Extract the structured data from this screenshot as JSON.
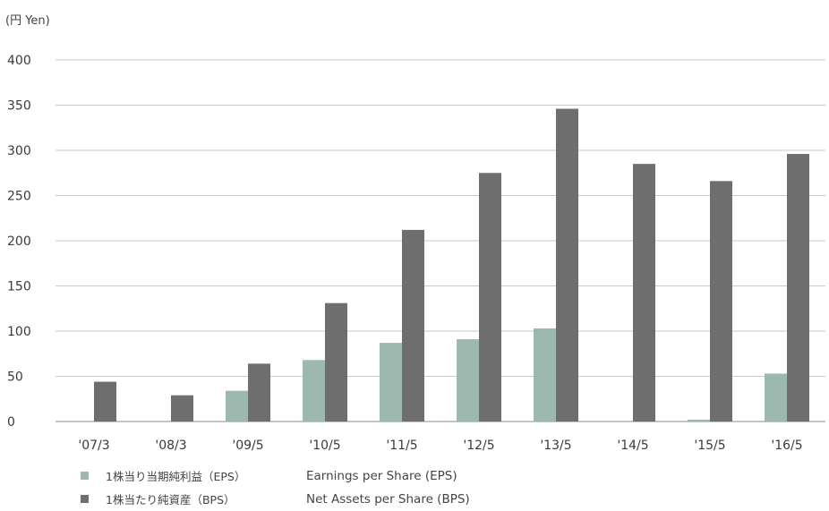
{
  "unit_label": "(円 Yen)",
  "legend": [
    {
      "jp": "1株当り当期純利益（EPS）",
      "en": "Earnings per Share (EPS)",
      "color": "#9db8ae"
    },
    {
      "jp": "1株当たり純資産（BPS）",
      "en": "Net Assets per Share (BPS)",
      "color": "#6e6e6e"
    }
  ],
  "chart_data": {
    "type": "bar",
    "categories": [
      "'07/3",
      "'08/3",
      "'09/5",
      "'10/5",
      "'11/5",
      "'12/5",
      "'13/5",
      "'14/5",
      "'15/5",
      "'16/5"
    ],
    "series": [
      {
        "name": "1株当り当期純利益（EPS） Earnings per Share (EPS)",
        "color": "#9db8ae",
        "values": [
          0,
          0,
          34,
          68,
          87,
          91,
          103,
          0,
          2,
          53
        ]
      },
      {
        "name": "1株当たり純資産（BPS） Net Assets per Share (BPS)",
        "color": "#6e6e6e",
        "values": [
          44,
          29,
          64,
          131,
          212,
          275,
          346,
          285,
          266,
          296
        ]
      }
    ],
    "y_ticks": [
      0,
      50,
      100,
      150,
      200,
      250,
      300,
      350,
      400
    ],
    "ylim": [
      0,
      400
    ],
    "grid": true,
    "legend_position": "bottom-left"
  }
}
